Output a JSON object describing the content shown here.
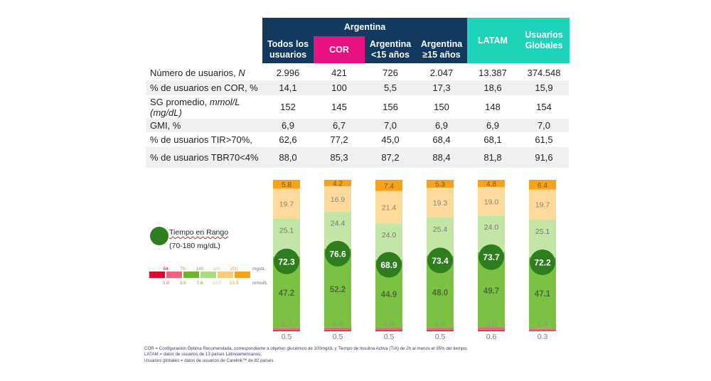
{
  "table": {
    "group_header": "Argentina",
    "columns": [
      {
        "label_lines": [
          "Todos los",
          "usuarios"
        ],
        "style": "navy"
      },
      {
        "label_lines": [
          "COR"
        ],
        "style": "pink"
      },
      {
        "label_lines": [
          "Argentina",
          "<15 años"
        ],
        "style": "navy"
      },
      {
        "label_lines": [
          "Argentina",
          "≥15 años"
        ],
        "style": "navy"
      },
      {
        "label_lines": [
          "LATAM"
        ],
        "style": "teal"
      },
      {
        "label_lines": [
          "Usuarios",
          "Globales"
        ],
        "style": "teal"
      }
    ],
    "colors": {
      "navy": "#123a5e",
      "pink": "#e8117f",
      "teal": "#1dd3b9"
    },
    "rows": [
      {
        "label": "Número de usuarios, ",
        "label_italic": "N",
        "values": [
          "2.996",
          "421",
          "726",
          "2.047",
          "13.387",
          "374.548"
        ]
      },
      {
        "label": "% de usuarios en COR, %",
        "values": [
          "14,1",
          "100",
          "5,5",
          "17,3",
          "18,6",
          "15,9"
        ]
      },
      {
        "label": "SG promedio, ",
        "label_italic": "mmol/L",
        "label_line2_italic": "(mg/dL)",
        "values": [
          "152",
          "145",
          "156",
          "150",
          "148",
          "154"
        ]
      },
      {
        "label": "GMI, %",
        "values": [
          "6,9",
          "6,7",
          "7,0",
          "6,9",
          "6,9",
          "7,0"
        ]
      },
      {
        "label": "% de usuarios TIR>70%,",
        "values": [
          "62,6",
          "77,2",
          "45,0",
          "68,4",
          "68,1",
          "61,5"
        ]
      },
      {
        "label": "% de usuarios TBR70<4%",
        "values": [
          "88,0",
          "85,3",
          "87,2",
          "88,4",
          "81,8",
          "91,6"
        ]
      }
    ]
  },
  "legend": {
    "tir_title": "Tiempo en Rango",
    "tir_range": "(70-180 mg/dL)",
    "mgdl_ticks": [
      "54",
      "70",
      "140",
      "180",
      "250"
    ],
    "mmol_ticks": [
      "3.0",
      "3.9",
      "7.8",
      "10.0",
      "13.9"
    ],
    "mgdl_unit": "mg/dL",
    "mmol_unit": "mmol/L",
    "band_colors": [
      "#e4002b",
      "#f2607a",
      "#6cb52d",
      "#a8dd80",
      "#fdc978",
      "#f7a21b"
    ]
  },
  "chart_data": {
    "type": "bar",
    "stacked": true,
    "categories": [
      "Todos los usuarios",
      "COR",
      "Argentina <15 años",
      "Argentina ≥15 años",
      "LATAM",
      "Usuarios Globales"
    ],
    "series": [
      {
        "name": "<54 mg/dL",
        "color": "#e4002b",
        "values": [
          0.5,
          0.5,
          0.5,
          0.5,
          0.6,
          0.3
        ]
      },
      {
        "name": "54-70 mg/dL",
        "color": "#f2607a",
        "values": [
          1.7,
          1.9,
          1.8,
          1.6,
          2.0,
          1.4
        ]
      },
      {
        "name": "70-140 mg/dL",
        "color": "#7cc242",
        "values": [
          47.2,
          52.2,
          44.9,
          48.0,
          49.7,
          47.1
        ]
      },
      {
        "name": "140-180 mg/dL",
        "color": "#c3e6a6",
        "values": [
          25.1,
          24.4,
          24.0,
          25.4,
          24.0,
          25.1
        ]
      },
      {
        "name": "180-250 mg/dL",
        "color": "#fdd99b",
        "values": [
          19.7,
          16.9,
          21.4,
          19.3,
          19.0,
          19.7
        ]
      },
      {
        "name": ">250 mg/dL",
        "color": "#f7a21b",
        "values": [
          5.8,
          4.2,
          7.4,
          5.3,
          4.8,
          6.4
        ]
      }
    ],
    "tir": {
      "name": "Tiempo en Rango (70-180 mg/dL)",
      "color": "#2e7d1f",
      "values": [
        72.3,
        76.6,
        68.9,
        73.4,
        73.7,
        72.2
      ]
    },
    "ylim": [
      0,
      100
    ],
    "title": "",
    "xlabel": "",
    "ylabel": "",
    "grid": false
  },
  "footnotes": [
    "COR = Configuración Óptima Recomendada, correspondiente a objetivo glucémico de 100mg/dL y Tiempo de Insulina Activa (TIA) de 2h al menos el 95% del tiempo;",
    "LATAM = datos de usuarios de 13 países Latinoamericanos;",
    "Usuarios globales = datos de usuarios de Carelink™ de 82 países."
  ]
}
